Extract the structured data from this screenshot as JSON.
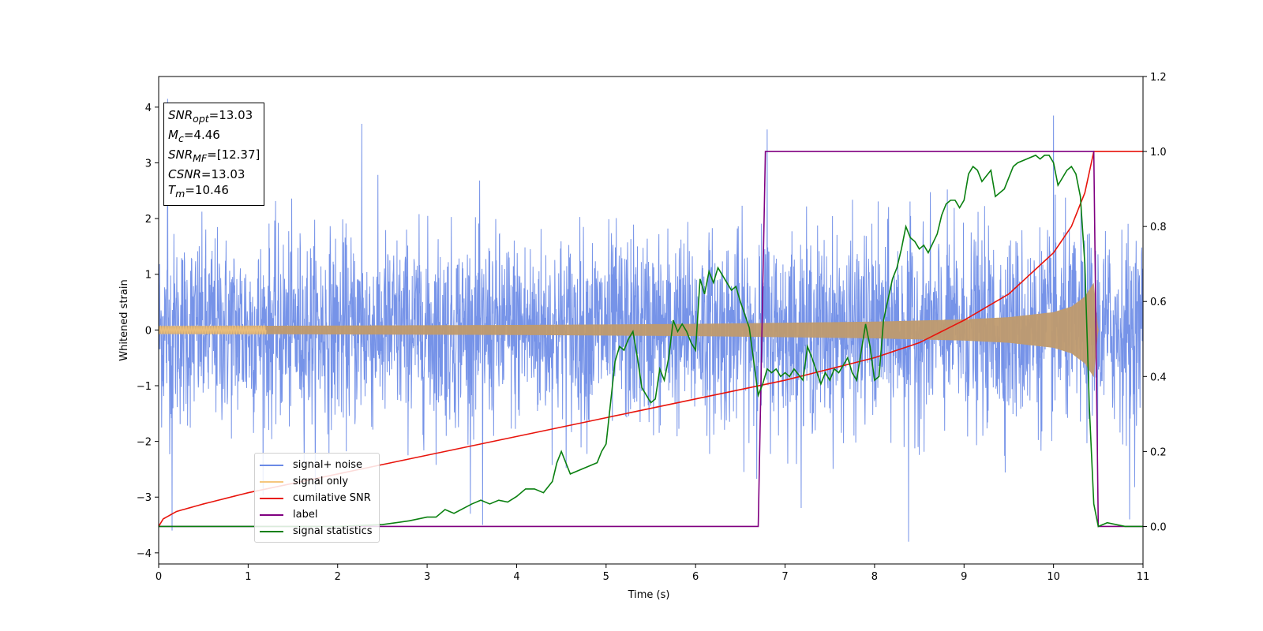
{
  "chart_data": {
    "type": "line",
    "xlabel": "Time (s)",
    "ylabel": "Whitened strain",
    "xlim": [
      0,
      11
    ],
    "ylim_left": [
      -4.2,
      4.55
    ],
    "ylim_right": [
      -0.1,
      1.2
    ],
    "x_ticks": [
      "0",
      "1",
      "2",
      "3",
      "4",
      "5",
      "6",
      "7",
      "8",
      "9",
      "10",
      "11"
    ],
    "y_ticks_left": [
      "4",
      "3",
      "2",
      "1",
      "0",
      "−1",
      "−2",
      "−3",
      "−4"
    ],
    "y_ticks_right": [
      "1.2",
      "1.0",
      "0.8",
      "0.6",
      "0.4",
      "0.2",
      "0.0"
    ],
    "grid": false,
    "legend_position": "lower-left",
    "series": [
      {
        "name": "signal+ noise",
        "color": "#6a8ae6",
        "axis": "left",
        "description_points": {
          "x": [
            0,
            11
          ],
          "noise_sigma": 0.85,
          "peaks": [
            [
              0.1,
              4.15
            ],
            [
              2.27,
              3.7
            ],
            [
              6.8,
              3.6
            ],
            [
              10.0,
              3.85
            ],
            [
              8.38,
              -3.8
            ],
            [
              0.15,
              -3.6
            ],
            [
              3.62,
              -3.5
            ],
            [
              10.85,
              -3.4
            ]
          ]
        }
      },
      {
        "name": "signal only",
        "color": "#f5c77e",
        "axis": "left",
        "envelope": {
          "x": [
            0,
            1,
            2,
            3,
            4,
            5,
            6,
            7,
            8,
            9,
            9.5,
            10,
            10.2,
            10.35,
            10.45,
            10.5,
            11
          ],
          "amp": [
            0.07,
            0.075,
            0.08,
            0.085,
            0.09,
            0.1,
            0.11,
            0.13,
            0.15,
            0.19,
            0.23,
            0.32,
            0.42,
            0.6,
            0.85,
            0.0,
            0.0
          ]
        }
      },
      {
        "name": "cumilative SNR",
        "color": "#e8140c",
        "axis": "right",
        "x": [
          0,
          0.05,
          0.2,
          0.5,
          1,
          2,
          3,
          4,
          5,
          6,
          7,
          8,
          8.5,
          9,
          9.5,
          10,
          10.2,
          10.35,
          10.45,
          11
        ],
        "y": [
          0.0,
          0.02,
          0.04,
          0.06,
          0.09,
          0.14,
          0.19,
          0.24,
          0.29,
          0.34,
          0.39,
          0.45,
          0.49,
          0.55,
          0.62,
          0.73,
          0.8,
          0.89,
          1.0,
          1.0
        ]
      },
      {
        "name": "label",
        "color": "#800080",
        "axis": "right",
        "x": [
          0,
          6.7,
          6.78,
          10.45,
          10.5,
          11
        ],
        "y": [
          0.0,
          0.0,
          1.0,
          1.0,
          0.0,
          0.0
        ]
      },
      {
        "name": "signal statistics",
        "color": "#0a8010",
        "axis": "right",
        "x": [
          0,
          2.0,
          2.5,
          2.8,
          3.0,
          3.1,
          3.2,
          3.3,
          3.5,
          3.6,
          3.7,
          3.8,
          3.9,
          4.0,
          4.1,
          4.2,
          4.3,
          4.4,
          4.45,
          4.5,
          4.6,
          4.7,
          4.8,
          4.9,
          4.95,
          5.0,
          5.1,
          5.15,
          5.2,
          5.25,
          5.3,
          5.35,
          5.4,
          5.5,
          5.55,
          5.6,
          5.65,
          5.7,
          5.75,
          5.8,
          5.85,
          5.9,
          5.95,
          6.0,
          6.05,
          6.1,
          6.15,
          6.2,
          6.25,
          6.3,
          6.35,
          6.4,
          6.45,
          6.5,
          6.6,
          6.7,
          6.75,
          6.8,
          6.85,
          6.9,
          6.95,
          7.0,
          7.05,
          7.1,
          7.2,
          7.25,
          7.3,
          7.4,
          7.45,
          7.5,
          7.55,
          7.6,
          7.7,
          7.75,
          7.8,
          7.9,
          7.95,
          8.0,
          8.05,
          8.1,
          8.2,
          8.25,
          8.3,
          8.35,
          8.4,
          8.45,
          8.5,
          8.55,
          8.6,
          8.7,
          8.75,
          8.8,
          8.85,
          8.9,
          8.95,
          9.0,
          9.05,
          9.1,
          9.15,
          9.2,
          9.3,
          9.35,
          9.4,
          9.45,
          9.5,
          9.55,
          9.6,
          9.7,
          9.8,
          9.85,
          9.9,
          9.95,
          10.0,
          10.05,
          10.1,
          10.15,
          10.2,
          10.25,
          10.3,
          10.35,
          10.4,
          10.45,
          10.5,
          10.6,
          10.8,
          11
        ],
        "y": [
          0.0,
          0.0,
          0.005,
          0.015,
          0.025,
          0.025,
          0.045,
          0.035,
          0.06,
          0.07,
          0.06,
          0.07,
          0.065,
          0.08,
          0.1,
          0.1,
          0.09,
          0.12,
          0.17,
          0.2,
          0.14,
          0.15,
          0.16,
          0.17,
          0.2,
          0.22,
          0.44,
          0.48,
          0.47,
          0.5,
          0.52,
          0.45,
          0.37,
          0.33,
          0.34,
          0.42,
          0.39,
          0.45,
          0.55,
          0.52,
          0.54,
          0.52,
          0.49,
          0.47,
          0.66,
          0.62,
          0.68,
          0.65,
          0.69,
          0.67,
          0.65,
          0.63,
          0.64,
          0.6,
          0.53,
          0.35,
          0.38,
          0.42,
          0.41,
          0.42,
          0.4,
          0.41,
          0.4,
          0.42,
          0.39,
          0.48,
          0.45,
          0.38,
          0.41,
          0.39,
          0.42,
          0.41,
          0.45,
          0.41,
          0.39,
          0.54,
          0.48,
          0.39,
          0.4,
          0.55,
          0.66,
          0.69,
          0.74,
          0.8,
          0.77,
          0.76,
          0.74,
          0.75,
          0.73,
          0.78,
          0.83,
          0.86,
          0.87,
          0.87,
          0.85,
          0.87,
          0.94,
          0.96,
          0.95,
          0.92,
          0.95,
          0.88,
          0.89,
          0.9,
          0.93,
          0.96,
          0.97,
          0.98,
          0.99,
          0.98,
          0.99,
          0.99,
          0.97,
          0.91,
          0.93,
          0.95,
          0.96,
          0.94,
          0.88,
          0.7,
          0.32,
          0.06,
          0.0,
          0.01,
          0.0,
          0.0
        ]
      }
    ]
  },
  "info_box": {
    "snr_opt": {
      "symbol": "SNR",
      "sub": "opt",
      "value": "=13.03"
    },
    "mc": {
      "symbol": "M",
      "sub": "c",
      "value": "=4.46"
    },
    "snr_mf": {
      "symbol": "SNR",
      "sub": "MF",
      "value": "=[12.37]"
    },
    "csnr": {
      "symbol": "CSNR",
      "value": "=13.03"
    },
    "tm": {
      "symbol": "T",
      "sub": "m",
      "value": "=10.46"
    }
  }
}
